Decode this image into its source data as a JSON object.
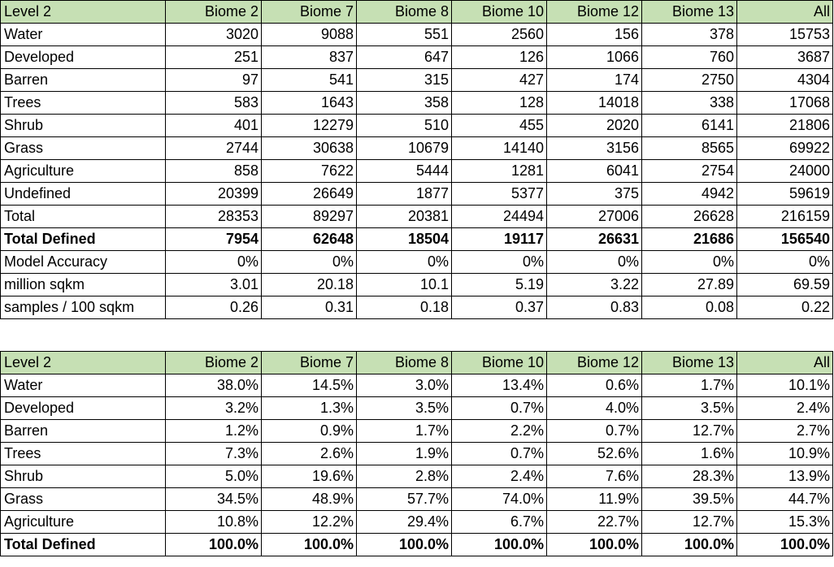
{
  "table1": {
    "header": [
      "Level 2",
      "Biome 2",
      "Biome 7",
      "Biome 8",
      "Biome 10",
      "Biome 12",
      "Biome 13",
      "All"
    ],
    "rows": [
      {
        "label": "Water",
        "values": [
          "3020",
          "9088",
          "551",
          "2560",
          "156",
          "378",
          "15753"
        ],
        "bold": false
      },
      {
        "label": "Developed",
        "values": [
          "251",
          "837",
          "647",
          "126",
          "1066",
          "760",
          "3687"
        ],
        "bold": false
      },
      {
        "label": "Barren",
        "values": [
          "97",
          "541",
          "315",
          "427",
          "174",
          "2750",
          "4304"
        ],
        "bold": false
      },
      {
        "label": "Trees",
        "values": [
          "583",
          "1643",
          "358",
          "128",
          "14018",
          "338",
          "17068"
        ],
        "bold": false
      },
      {
        "label": "Shrub",
        "values": [
          "401",
          "12279",
          "510",
          "455",
          "2020",
          "6141",
          "21806"
        ],
        "bold": false
      },
      {
        "label": "Grass",
        "values": [
          "2744",
          "30638",
          "10679",
          "14140",
          "3156",
          "8565",
          "69922"
        ],
        "bold": false
      },
      {
        "label": "Agriculture",
        "values": [
          "858",
          "7622",
          "5444",
          "1281",
          "6041",
          "2754",
          "24000"
        ],
        "bold": false
      },
      {
        "label": "Undefined",
        "values": [
          "20399",
          "26649",
          "1877",
          "5377",
          "375",
          "4942",
          "59619"
        ],
        "bold": false
      },
      {
        "label": "Total",
        "values": [
          "28353",
          "89297",
          "20381",
          "24494",
          "27006",
          "26628",
          "216159"
        ],
        "bold": false
      },
      {
        "label": "Total Defined",
        "values": [
          "7954",
          "62648",
          "18504",
          "19117",
          "26631",
          "21686",
          "156540"
        ],
        "bold": true
      },
      {
        "label": "Model Accuracy",
        "values": [
          "0%",
          "0%",
          "0%",
          "0%",
          "0%",
          "0%",
          "0%"
        ],
        "bold": false
      },
      {
        "label": "million sqkm",
        "values": [
          "3.01",
          "20.18",
          "10.1",
          "5.19",
          "3.22",
          "27.89",
          "69.59"
        ],
        "bold": false
      },
      {
        "label": "samples / 100 sqkm",
        "values": [
          "0.26",
          "0.31",
          "0.18",
          "0.37",
          "0.83",
          "0.08",
          "0.22"
        ],
        "bold": false
      }
    ]
  },
  "table2": {
    "header": [
      "Level 2",
      "Biome 2",
      "Biome 7",
      "Biome 8",
      "Biome 10",
      "Biome 12",
      "Biome 13",
      "All"
    ],
    "rows": [
      {
        "label": "Water",
        "values": [
          "38.0%",
          "14.5%",
          "3.0%",
          "13.4%",
          "0.6%",
          "1.7%",
          "10.1%"
        ],
        "bold": false
      },
      {
        "label": "Developed",
        "values": [
          "3.2%",
          "1.3%",
          "3.5%",
          "0.7%",
          "4.0%",
          "3.5%",
          "2.4%"
        ],
        "bold": false
      },
      {
        "label": "Barren",
        "values": [
          "1.2%",
          "0.9%",
          "1.7%",
          "2.2%",
          "0.7%",
          "12.7%",
          "2.7%"
        ],
        "bold": false
      },
      {
        "label": "Trees",
        "values": [
          "7.3%",
          "2.6%",
          "1.9%",
          "0.7%",
          "52.6%",
          "1.6%",
          "10.9%"
        ],
        "bold": false
      },
      {
        "label": "Shrub",
        "values": [
          "5.0%",
          "19.6%",
          "2.8%",
          "2.4%",
          "7.6%",
          "28.3%",
          "13.9%"
        ],
        "bold": false
      },
      {
        "label": "Grass",
        "values": [
          "34.5%",
          "48.9%",
          "57.7%",
          "74.0%",
          "11.9%",
          "39.5%",
          "44.7%"
        ],
        "bold": false
      },
      {
        "label": "Agriculture",
        "values": [
          "10.8%",
          "12.2%",
          "29.4%",
          "6.7%",
          "22.7%",
          "12.7%",
          "15.3%"
        ],
        "bold": false
      },
      {
        "label": "Total Defined",
        "values": [
          "100.0%",
          "100.0%",
          "100.0%",
          "100.0%",
          "100.0%",
          "100.0%",
          "100.0%"
        ],
        "bold": true
      }
    ]
  },
  "colors": {
    "header_fill": "#c6e0b4",
    "border": "#000000"
  }
}
